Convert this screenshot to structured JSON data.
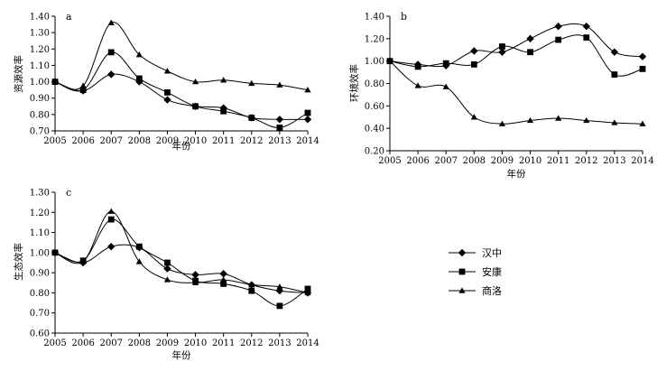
{
  "legend": {
    "items": [
      {
        "name": "汉中",
        "marker": "diamond"
      },
      {
        "name": "安康",
        "marker": "square"
      },
      {
        "name": "商洛",
        "marker": "triangle"
      }
    ]
  },
  "chart_data": [
    {
      "type": "line",
      "panel": "a",
      "title": "",
      "xlabel": "年份",
      "ylabel": "资源效率",
      "x": [
        "2005",
        "2006",
        "2007",
        "2008",
        "2009",
        "2010",
        "2011",
        "2012",
        "2013",
        "2014"
      ],
      "ylim": [
        0.7,
        1.4
      ],
      "yticks": [
        "0.70",
        "0.80",
        "0.90",
        "1.00",
        "1.10",
        "1.20",
        "1.30",
        "1.40"
      ],
      "series": [
        {
          "name": "汉中",
          "marker": "diamond",
          "values": [
            1.0,
            0.945,
            1.045,
            1.0,
            0.89,
            0.85,
            0.84,
            0.78,
            0.77,
            0.77
          ]
        },
        {
          "name": "安康",
          "marker": "square",
          "values": [
            1.0,
            0.95,
            1.18,
            1.02,
            0.935,
            0.85,
            0.82,
            0.78,
            0.72,
            0.81
          ]
        },
        {
          "name": "商洛",
          "marker": "triangle",
          "values": [
            1.0,
            0.975,
            1.36,
            1.165,
            1.065,
            1.0,
            1.01,
            0.99,
            0.98,
            0.95
          ]
        }
      ]
    },
    {
      "type": "line",
      "panel": "b",
      "title": "",
      "xlabel": "年份",
      "ylabel": "环境效率",
      "x": [
        "2005",
        "2006",
        "2007",
        "2008",
        "2009",
        "2010",
        "2011",
        "2012",
        "2013",
        "2014"
      ],
      "ylim": [
        0.2,
        1.4
      ],
      "yticks": [
        "0.20",
        "0.40",
        "0.60",
        "0.80",
        "1.00",
        "1.20",
        "1.40"
      ],
      "series": [
        {
          "name": "汉中",
          "marker": "diamond",
          "values": [
            1.0,
            0.97,
            0.96,
            1.09,
            1.08,
            1.2,
            1.31,
            1.31,
            1.08,
            1.04
          ]
        },
        {
          "name": "安康",
          "marker": "square",
          "values": [
            1.0,
            0.95,
            0.98,
            0.97,
            1.13,
            1.08,
            1.19,
            1.21,
            0.88,
            0.93
          ]
        },
        {
          "name": "商洛",
          "marker": "triangle",
          "values": [
            1.0,
            0.78,
            0.77,
            0.5,
            0.44,
            0.47,
            0.49,
            0.47,
            0.45,
            0.44
          ]
        }
      ]
    },
    {
      "type": "line",
      "panel": "c",
      "title": "",
      "xlabel": "年份",
      "ylabel": "生态效率",
      "x": [
        "2005",
        "2006",
        "2007",
        "2008",
        "2009",
        "2010",
        "2011",
        "2012",
        "2013",
        "2014"
      ],
      "ylim": [
        0.6,
        1.3
      ],
      "yticks": [
        "0.60",
        "0.70",
        "0.80",
        "0.90",
        "1.00",
        "1.10",
        "1.20",
        "1.30"
      ],
      "series": [
        {
          "name": "汉中",
          "marker": "diamond",
          "values": [
            1.0,
            0.95,
            1.03,
            1.025,
            0.92,
            0.89,
            0.895,
            0.84,
            0.81,
            0.8
          ]
        },
        {
          "name": "安康",
          "marker": "square",
          "values": [
            1.0,
            0.96,
            1.165,
            1.03,
            0.95,
            0.86,
            0.845,
            0.81,
            0.735,
            0.82
          ]
        },
        {
          "name": "商洛",
          "marker": "triangle",
          "values": [
            1.0,
            0.955,
            1.205,
            0.955,
            0.865,
            0.85,
            0.865,
            0.84,
            0.83,
            0.8
          ]
        }
      ]
    }
  ]
}
